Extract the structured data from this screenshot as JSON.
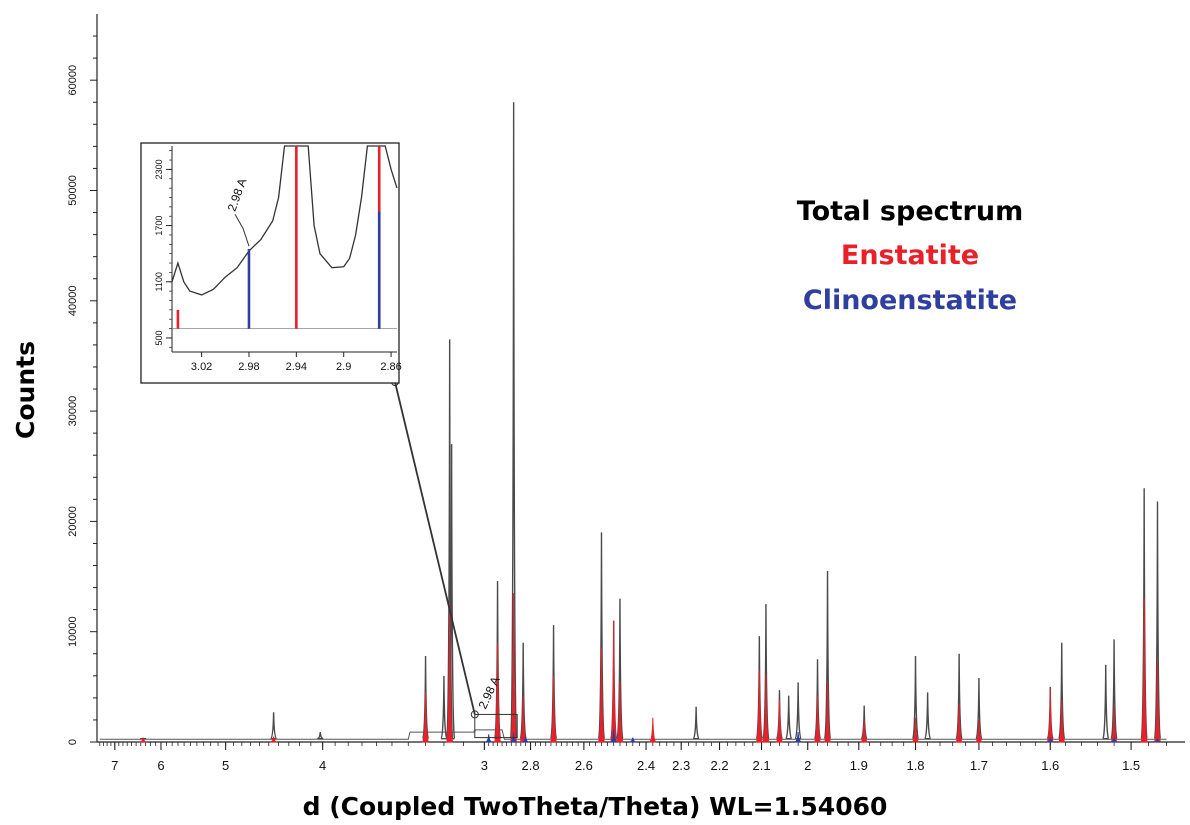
{
  "chart_data": {
    "type": "line",
    "title": "",
    "xlabel": "d (Coupled TwoTheta/Theta) WL=1.54060",
    "ylabel": "Counts",
    "x_axis_reversed": true,
    "ylim": [
      0,
      66000
    ],
    "x_ticks": [
      "7",
      "6",
      "5",
      "4",
      "3",
      "2.8",
      "2.6",
      "2.4",
      "2.3",
      "2.2",
      "2.1",
      "2",
      "1.9",
      "1.8",
      "1.7",
      "1.6",
      "1.5"
    ],
    "y_ticks": [
      "0",
      "10000",
      "20000",
      "30000",
      "40000",
      "50000",
      "60000"
    ],
    "legend": {
      "placement": "top-right",
      "entries": [
        {
          "label": "Total spectrum",
          "color": "#000000"
        },
        {
          "label": "Enstatite",
          "color": "#e8202a"
        },
        {
          "label": "Clinoenstatite",
          "color": "#2e3f9e"
        }
      ]
    },
    "series": [
      {
        "name": "Total spectrum",
        "color": "#4a4a4a",
        "peaks": [
          {
            "d": 6.35,
            "counts": 200
          },
          {
            "d": 4.45,
            "counts": 2700
          },
          {
            "d": 4.02,
            "counts": 900
          },
          {
            "d": 3.3,
            "counts": 7800
          },
          {
            "d": 3.2,
            "counts": 6000
          },
          {
            "d": 3.17,
            "counts": 36500
          },
          {
            "d": 3.16,
            "counts": 27000
          },
          {
            "d": 2.94,
            "counts": 14600
          },
          {
            "d": 2.87,
            "counts": 58000
          },
          {
            "d": 2.83,
            "counts": 9000
          },
          {
            "d": 2.71,
            "counts": 10600
          },
          {
            "d": 2.54,
            "counts": 19000
          },
          {
            "d": 2.5,
            "counts": 11000
          },
          {
            "d": 2.48,
            "counts": 13000
          },
          {
            "d": 2.26,
            "counts": 3200
          },
          {
            "d": 2.105,
            "counts": 9600
          },
          {
            "d": 2.09,
            "counts": 12500
          },
          {
            "d": 2.06,
            "counts": 4700
          },
          {
            "d": 2.04,
            "counts": 4200
          },
          {
            "d": 2.02,
            "counts": 5400
          },
          {
            "d": 1.98,
            "counts": 7500
          },
          {
            "d": 1.96,
            "counts": 15500
          },
          {
            "d": 1.89,
            "counts": 3300
          },
          {
            "d": 1.8,
            "counts": 7800
          },
          {
            "d": 1.78,
            "counts": 4500
          },
          {
            "d": 1.73,
            "counts": 8000
          },
          {
            "d": 1.7,
            "counts": 5800
          },
          {
            "d": 1.6,
            "counts": 5000
          },
          {
            "d": 1.585,
            "counts": 9000
          },
          {
            "d": 1.53,
            "counts": 7000
          },
          {
            "d": 1.52,
            "counts": 9300
          },
          {
            "d": 1.485,
            "counts": 23000
          },
          {
            "d": 1.47,
            "counts": 21800
          }
        ]
      },
      {
        "name": "Enstatite",
        "color": "#e8202a",
        "peaks": [
          {
            "d": 6.35,
            "counts": 400
          },
          {
            "d": 4.45,
            "counts": 500
          },
          {
            "d": 3.3,
            "counts": 4500
          },
          {
            "d": 3.17,
            "counts": 12500
          },
          {
            "d": 2.94,
            "counts": 9000
          },
          {
            "d": 2.87,
            "counts": 13500
          },
          {
            "d": 2.83,
            "counts": 4200
          },
          {
            "d": 2.71,
            "counts": 6000
          },
          {
            "d": 2.54,
            "counts": 8500
          },
          {
            "d": 2.5,
            "counts": 11000
          },
          {
            "d": 2.48,
            "counts": 5500
          },
          {
            "d": 2.38,
            "counts": 2200
          },
          {
            "d": 2.105,
            "counts": 6500
          },
          {
            "d": 2.09,
            "counts": 6200
          },
          {
            "d": 2.06,
            "counts": 3800
          },
          {
            "d": 1.98,
            "counts": 4200
          },
          {
            "d": 1.96,
            "counts": 5500
          },
          {
            "d": 1.89,
            "counts": 2000
          },
          {
            "d": 1.8,
            "counts": 2200
          },
          {
            "d": 1.73,
            "counts": 3500
          },
          {
            "d": 1.7,
            "counts": 2000
          },
          {
            "d": 1.6,
            "counts": 4800
          },
          {
            "d": 1.585,
            "counts": 3800
          },
          {
            "d": 1.52,
            "counts": 3200
          },
          {
            "d": 1.485,
            "counts": 13000
          },
          {
            "d": 1.47,
            "counts": 7500
          }
        ]
      },
      {
        "name": "Clinoenstatite",
        "color": "#2e3f9e",
        "peaks": [
          {
            "d": 2.98,
            "counts": 700
          },
          {
            "d": 2.87,
            "counts": 800
          },
          {
            "d": 2.82,
            "counts": 500
          },
          {
            "d": 2.5,
            "counts": 1200
          },
          {
            "d": 2.44,
            "counts": 400
          },
          {
            "d": 2.02,
            "counts": 900
          },
          {
            "d": 1.6,
            "counts": 400
          },
          {
            "d": 1.52,
            "counts": 400
          },
          {
            "d": 1.47,
            "counts": 300
          }
        ]
      }
    ],
    "inset": {
      "x_ticks": [
        "3.02",
        "2.98",
        "2.94",
        "2.9",
        "2.86"
      ],
      "y_ticks": [
        "500",
        "1100",
        "1700",
        "2300"
      ],
      "annotation": "2.98 A",
      "xlim": [
        3.045,
        2.855
      ],
      "ylim": [
        350,
        2550
      ],
      "background_curve": [
        [
          3.045,
          1100
        ],
        [
          3.04,
          1300
        ],
        [
          3.035,
          1100
        ],
        [
          3.03,
          1000
        ],
        [
          3.02,
          960
        ],
        [
          3.01,
          1020
        ],
        [
          3.0,
          1150
        ],
        [
          2.99,
          1250
        ],
        [
          2.98,
          1430
        ],
        [
          2.97,
          1550
        ],
        [
          2.96,
          1750
        ],
        [
          2.955,
          2000
        ],
        [
          2.95,
          2600
        ],
        [
          2.93,
          2600
        ],
        [
          2.925,
          1700
        ],
        [
          2.92,
          1400
        ],
        [
          2.91,
          1250
        ],
        [
          2.9,
          1260
        ],
        [
          2.895,
          1350
        ],
        [
          2.89,
          1600
        ],
        [
          2.885,
          2000
        ],
        [
          2.88,
          2600
        ],
        [
          2.865,
          2600
        ],
        [
          2.86,
          2300
        ],
        [
          2.855,
          2100
        ]
      ],
      "enstatite_lines": [
        {
          "d": 3.04,
          "counts": 800
        },
        {
          "d": 2.94,
          "counts": 2550
        },
        {
          "d": 2.87,
          "counts": 2550
        }
      ],
      "clinoenstatite_lines": [
        {
          "d": 2.98,
          "counts": 1450
        },
        {
          "d": 2.87,
          "counts": 1850
        }
      ]
    },
    "main_annotation": "2.98 A"
  }
}
